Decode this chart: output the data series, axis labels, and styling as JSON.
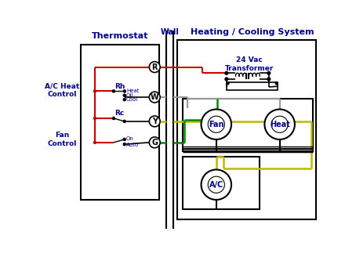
{
  "bg_color": "#ffffff",
  "title_thermostat": "Thermostat",
  "title_wall": "Wall",
  "title_hcs": "Heating / Cooling System",
  "title_transformer": "24 Vac\nTransformer",
  "label_ac_heat": "A/C Heat\nControl",
  "label_fan": "Fan\nControl",
  "label_Rh": "Rh",
  "label_Rc": "Rc",
  "label_heat": "Heat",
  "label_oil": "Oil",
  "label_cool": "Cool",
  "label_on": "On",
  "label_auto": "Auto",
  "label_R": "R",
  "label_W": "W",
  "label_Y": "Y",
  "label_G": "G",
  "label_Fan": "Fan",
  "label_Heat": "Heat",
  "label_AC": "A/C",
  "color_red": "#cc0000",
  "color_green": "#008800",
  "color_yellow": "#bbbb00",
  "color_gray": "#999999",
  "color_black": "#000000",
  "color_dark_blue": "#00008b",
  "font_title": 8,
  "font_label": 6.5,
  "font_small": 5
}
